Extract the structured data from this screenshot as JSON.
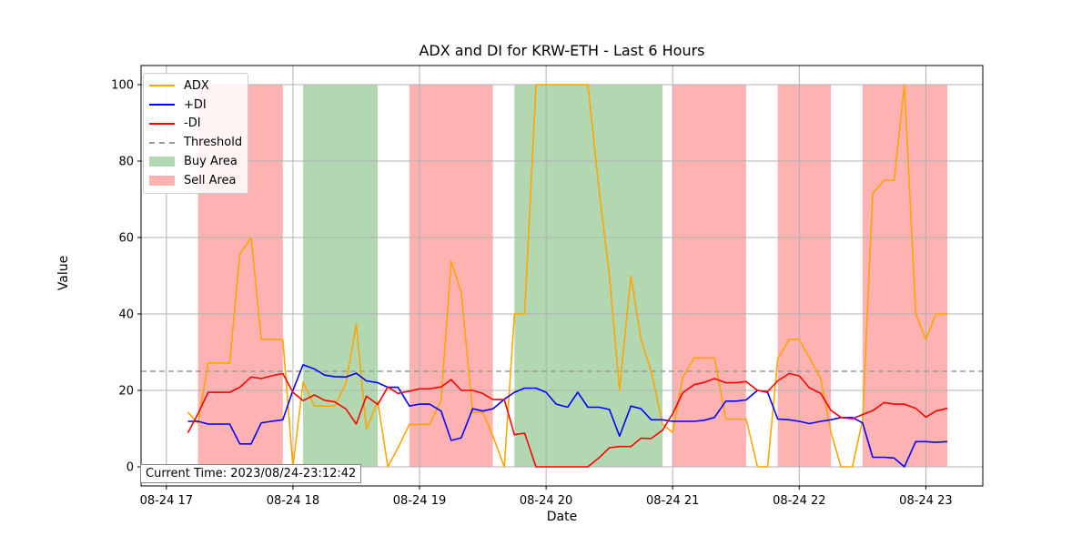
{
  "chart_data": {
    "type": "line",
    "title": "ADX and DI for KRW-ETH - Last 6 Hours",
    "xlabel": "Date",
    "ylabel": "Value",
    "xlim_hours": [
      16.8,
      23.45
    ],
    "ylim": [
      -5,
      105
    ],
    "x_ticks": [
      {
        "hour": 17,
        "label": "08-24 17"
      },
      {
        "hour": 18,
        "label": "08-24 18"
      },
      {
        "hour": 19,
        "label": "08-24 19"
      },
      {
        "hour": 20,
        "label": "08-24 20"
      },
      {
        "hour": 21,
        "label": "08-24 21"
      },
      {
        "hour": 22,
        "label": "08-24 22"
      },
      {
        "hour": 23,
        "label": "08-24 23"
      }
    ],
    "y_ticks": [
      0,
      20,
      40,
      60,
      80,
      100
    ],
    "grid": true,
    "legend_position": "top-left",
    "threshold": 25,
    "x_hours": [
      17.17,
      17.25,
      17.33,
      17.42,
      17.5,
      17.58,
      17.67,
      17.75,
      17.83,
      17.92,
      18.0,
      18.08,
      18.17,
      18.25,
      18.33,
      18.42,
      18.5,
      18.58,
      18.67,
      18.75,
      18.83,
      18.92,
      19.0,
      19.08,
      19.17,
      19.25,
      19.33,
      19.42,
      19.5,
      19.58,
      19.67,
      19.75,
      19.83,
      19.92,
      20.0,
      20.08,
      20.17,
      20.25,
      20.33,
      20.42,
      20.5,
      20.58,
      20.67,
      20.75,
      20.83,
      20.92,
      21.0,
      21.08,
      21.17,
      21.25,
      21.33,
      21.42,
      21.5,
      21.58,
      21.67,
      21.75,
      21.83,
      21.92,
      22.0,
      22.08,
      22.17,
      22.25,
      22.33,
      22.42,
      22.5,
      22.58,
      22.67,
      22.75,
      22.83,
      22.92,
      23.0,
      23.08,
      23.17
    ],
    "series": [
      {
        "name": "ADX",
        "color": "#ffa500",
        "values": [
          14.3,
          11.4,
          27.2,
          27.2,
          27.2,
          55.6,
          60.0,
          33.3,
          33.3,
          33.3,
          0,
          22.2,
          15.9,
          15.9,
          15.9,
          21.9,
          37.4,
          9.9,
          17.1,
          0,
          5.0,
          11.1,
          11.1,
          11.1,
          17.3,
          53.8,
          45.5,
          14.3,
          14.3,
          8.0,
          0,
          40.0,
          40.0,
          100,
          100,
          100,
          100,
          100,
          100,
          72.0,
          50.0,
          20.0,
          50.0,
          33.3,
          25.0,
          11.1,
          9.0,
          23.5,
          28.5,
          28.5,
          28.5,
          12.5,
          12.5,
          12.5,
          0,
          0,
          28.3,
          33.3,
          33.3,
          28.6,
          22.9,
          9.1,
          0,
          0,
          12.3,
          71.5,
          75.0,
          75.0,
          100,
          40.0,
          33.3,
          40.0,
          40.0
        ]
      },
      {
        "name": "+DI",
        "color": "#0000ff",
        "values": [
          11.9,
          11.9,
          11.2,
          11.2,
          11.2,
          6.0,
          6.0,
          11.5,
          11.9,
          12.3,
          20.0,
          26.7,
          25.6,
          24.0,
          23.6,
          23.5,
          24.5,
          22.5,
          22.0,
          20.8,
          20.8,
          15.9,
          16.4,
          16.4,
          14.6,
          6.9,
          7.6,
          15.2,
          14.6,
          15.2,
          17.7,
          19.5,
          20.6,
          20.6,
          19.5,
          16.4,
          15.6,
          19.5,
          15.6,
          15.6,
          15.0,
          8.0,
          15.9,
          15.2,
          12.3,
          12.3,
          11.9,
          11.9,
          11.9,
          12.2,
          12.9,
          17.2,
          17.2,
          17.5,
          20.0,
          19.5,
          12.5,
          12.3,
          11.9,
          11.3,
          11.9,
          12.3,
          12.9,
          12.9,
          11.5,
          2.5,
          2.5,
          2.3,
          0,
          6.6,
          6.6,
          6.4,
          6.6
        ]
      },
      {
        "name": "-DI",
        "color": "#ff0000",
        "values": [
          8.9,
          13.9,
          19.5,
          19.5,
          19.5,
          20.8,
          23.5,
          23.1,
          23.8,
          24.4,
          19.5,
          17.3,
          18.8,
          17.4,
          17.0,
          15.1,
          11.2,
          18.5,
          16.3,
          20.9,
          19.2,
          19.8,
          20.4,
          20.4,
          20.9,
          22.8,
          20.0,
          20.0,
          19.2,
          17.6,
          17.6,
          8.4,
          8.8,
          0,
          0,
          0,
          0,
          0,
          0,
          2.4,
          5.0,
          5.3,
          5.3,
          7.5,
          7.4,
          9.6,
          13.9,
          19.4,
          21.5,
          22.1,
          23.1,
          22.0,
          22.0,
          22.3,
          20.0,
          19.7,
          22.5,
          24.4,
          23.8,
          20.7,
          19.2,
          14.8,
          12.9,
          12.6,
          13.7,
          14.7,
          16.8,
          16.4,
          16.4,
          15.3,
          13.0,
          14.6,
          15.3
        ]
      },
      {
        "name": "Threshold",
        "color": "#999999"
      }
    ],
    "areas": [
      {
        "name": "Buy Area",
        "color": "#b2d8b2",
        "ranges": [
          [
            18.08,
            18.67
          ],
          [
            19.75,
            20.92
          ]
        ]
      },
      {
        "name": "Sell Area",
        "color": "#ffb2b2",
        "ranges": [
          [
            17.25,
            17.92
          ],
          [
            18.92,
            19.58
          ],
          [
            21.0,
            21.58
          ],
          [
            21.83,
            22.25
          ],
          [
            22.5,
            23.17
          ]
        ]
      }
    ],
    "annotation": "Current Time: 2023/08/24-23:12:42"
  },
  "legend": [
    {
      "label": "ADX",
      "kind": "line",
      "color": "#ffa500"
    },
    {
      "label": "+DI",
      "kind": "line",
      "color": "#0000ff"
    },
    {
      "label": "-DI",
      "kind": "line",
      "color": "#ff0000"
    },
    {
      "label": "Threshold",
      "kind": "dash",
      "color": "#999999"
    },
    {
      "label": "Buy Area",
      "kind": "patch",
      "color": "#b2d8b2"
    },
    {
      "label": "Sell Area",
      "kind": "patch",
      "color": "#ffb2b2"
    }
  ]
}
